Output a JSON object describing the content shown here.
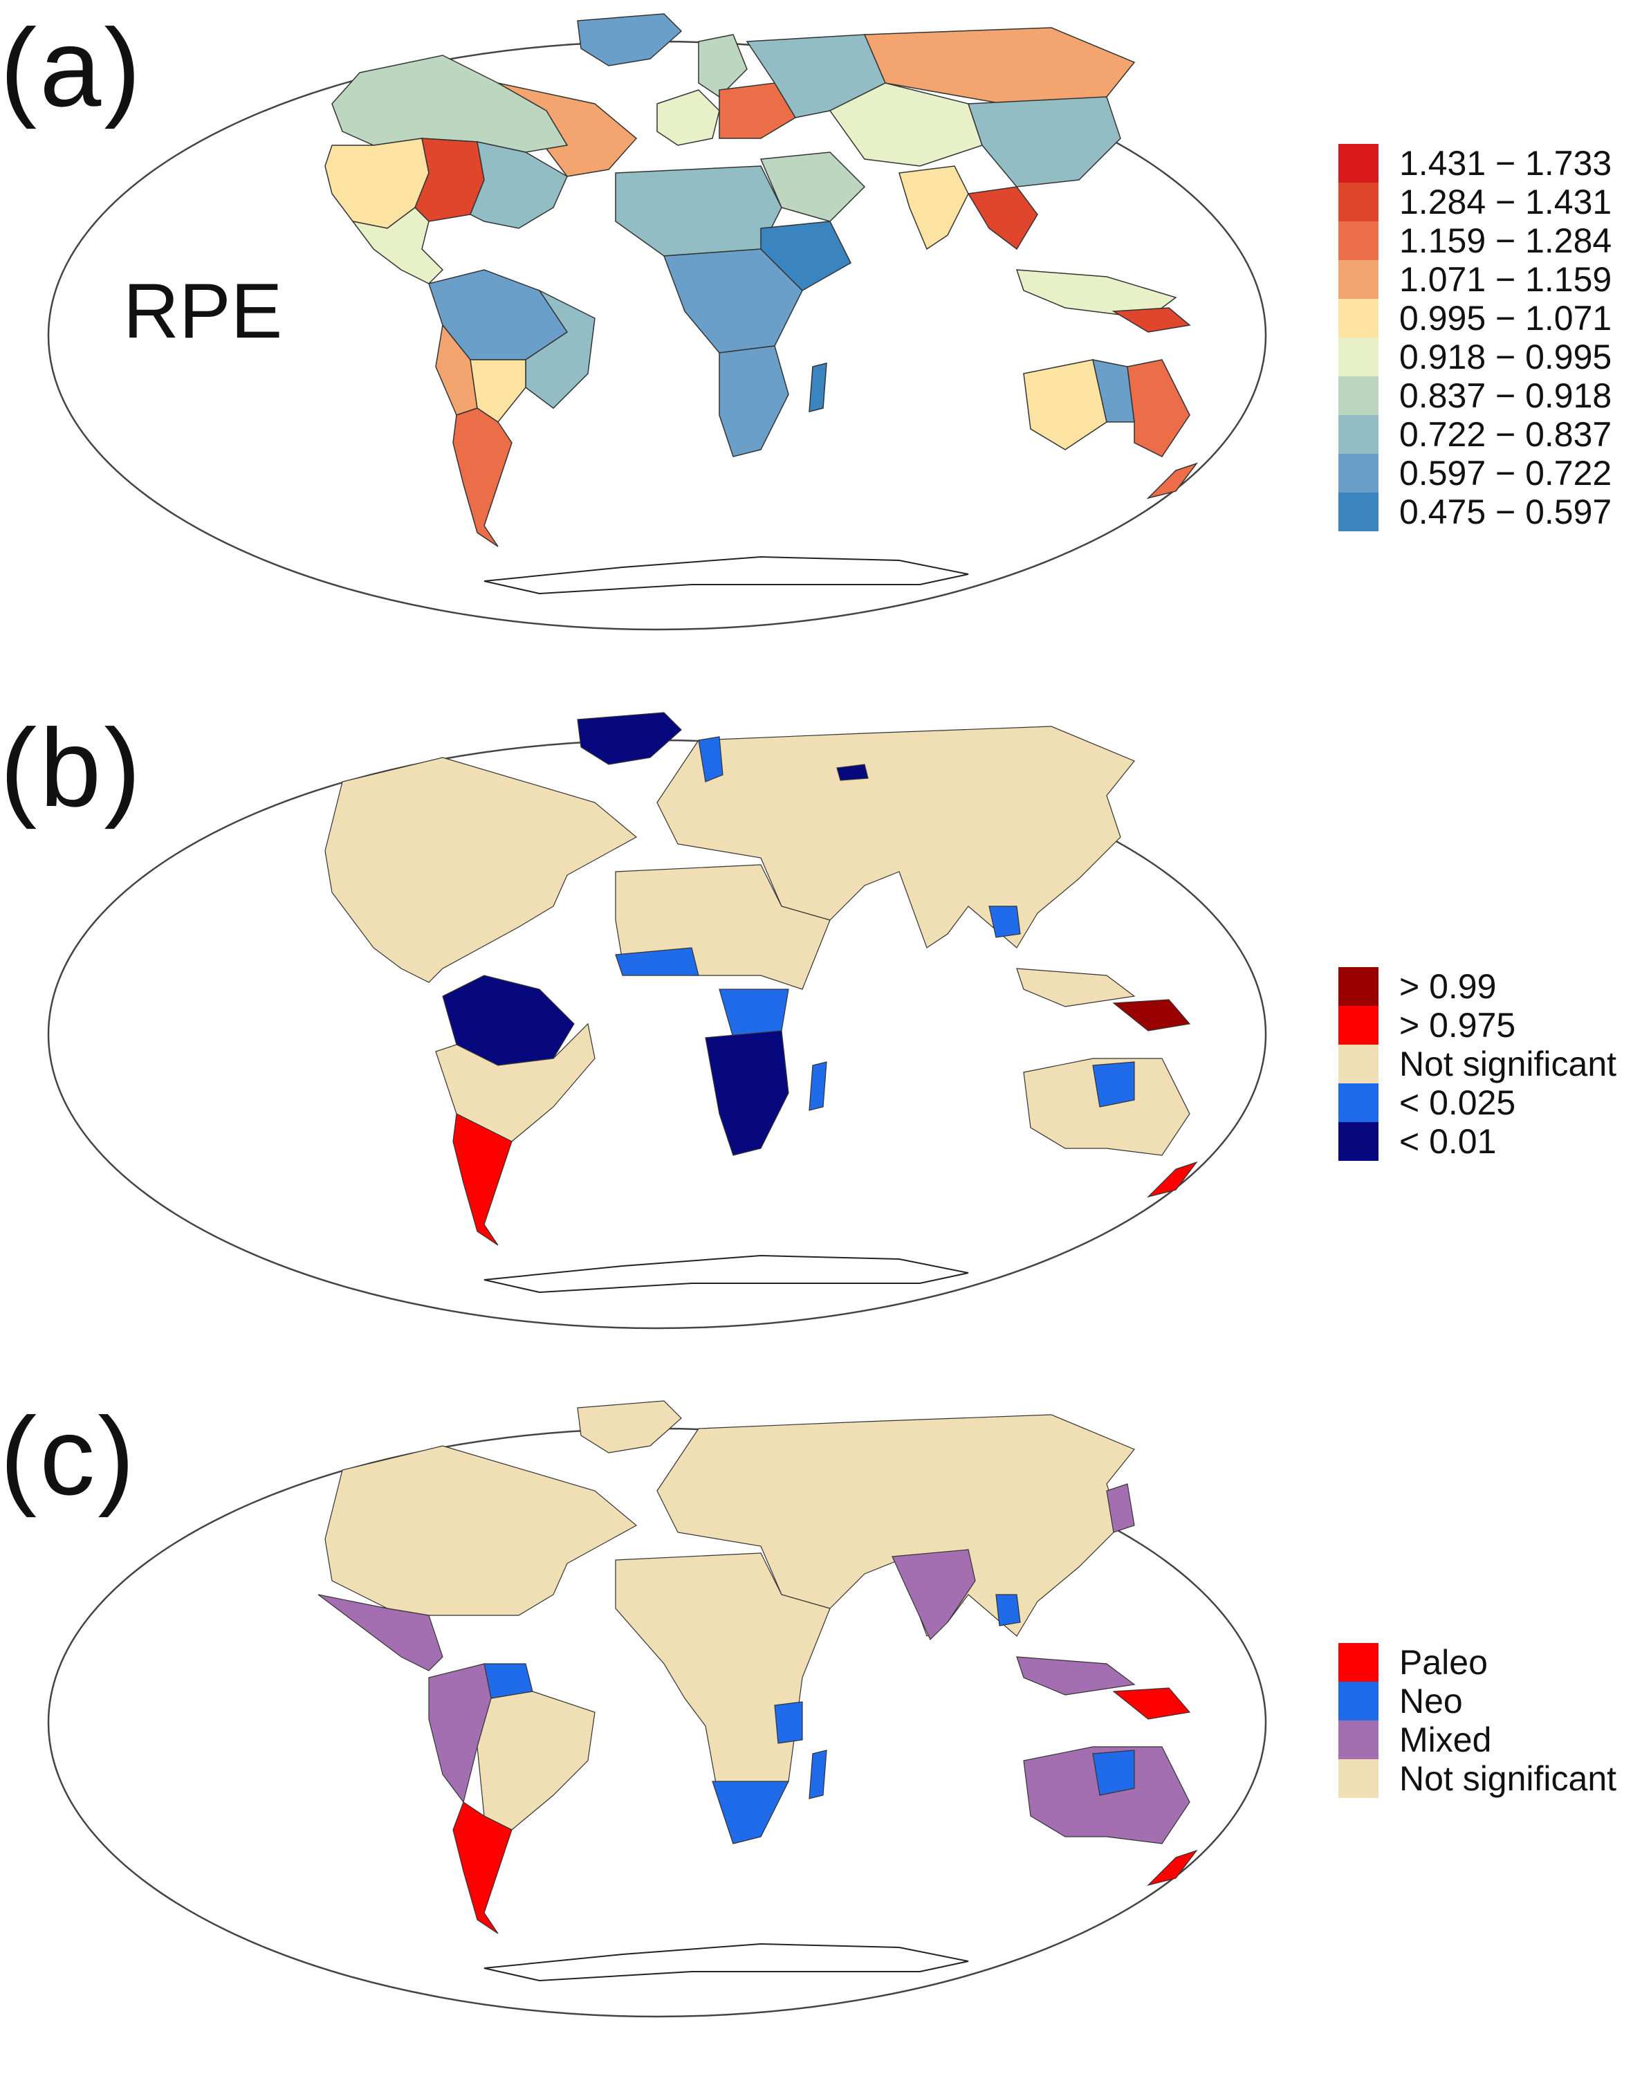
{
  "colors": {
    "ocean": "#ffffff",
    "outline": "#333333",
    "rpe": [
      "#d7191c",
      "#e0462b",
      "#ec6e48",
      "#f4a46e",
      "#fde3a1",
      "#e7f0c6",
      "#bcd6c0",
      "#92bdc4",
      "#6a9fc9",
      "#3a84bf"
    ],
    "sig": {
      "gt099": "#990000",
      "gt0975": "#ff0000",
      "ns": "#f0deb4",
      "lt0025": "#1f6bea",
      "lt001": "#08087e"
    },
    "cat": {
      "paleo": "#ff0000",
      "neo": "#1f6bea",
      "mixed": "#a36fb0",
      "ns": "#f0deb4"
    }
  },
  "panel_a": {
    "label": "(a)",
    "metric_label": "RPE",
    "legend": [
      {
        "text": "1.431 − 1.733",
        "color": "#d7191c"
      },
      {
        "text": "1.284 − 1.431",
        "color": "#e0462b"
      },
      {
        "text": "1.159 − 1.284",
        "color": "#ec6e48"
      },
      {
        "text": "1.071 − 1.159",
        "color": "#f4a46e"
      },
      {
        "text": "0.995 − 1.071",
        "color": "#fde3a1"
      },
      {
        "text": "0.918 − 0.995",
        "color": "#e7f0c6"
      },
      {
        "text": "0.837 − 0.918",
        "color": "#bcd6c0"
      },
      {
        "text": "0.722 − 0.837",
        "color": "#92bdc4"
      },
      {
        "text": "0.597 − 0.722",
        "color": "#6a9fc9"
      },
      {
        "text": "0.475 − 0.597",
        "color": "#3a84bf"
      }
    ]
  },
  "panel_b": {
    "label": "(b)",
    "legend": [
      {
        "text": "> 0.99",
        "color": "#990000"
      },
      {
        "text": "> 0.975",
        "color": "#ff0000"
      },
      {
        "text": "Not significant",
        "color": "#f0deb4"
      },
      {
        "text": "< 0.025",
        "color": "#1f6bea"
      },
      {
        "text": "< 0.01",
        "color": "#08087e"
      }
    ]
  },
  "panel_c": {
    "label": "(c)",
    "legend": [
      {
        "text": "Paleo",
        "color": "#ff0000"
      },
      {
        "text": "Neo",
        "color": "#1f6bea"
      },
      {
        "text": "Mixed",
        "color": "#a36fb0"
      },
      {
        "text": "Not significant",
        "color": "#f0deb4"
      }
    ]
  }
}
